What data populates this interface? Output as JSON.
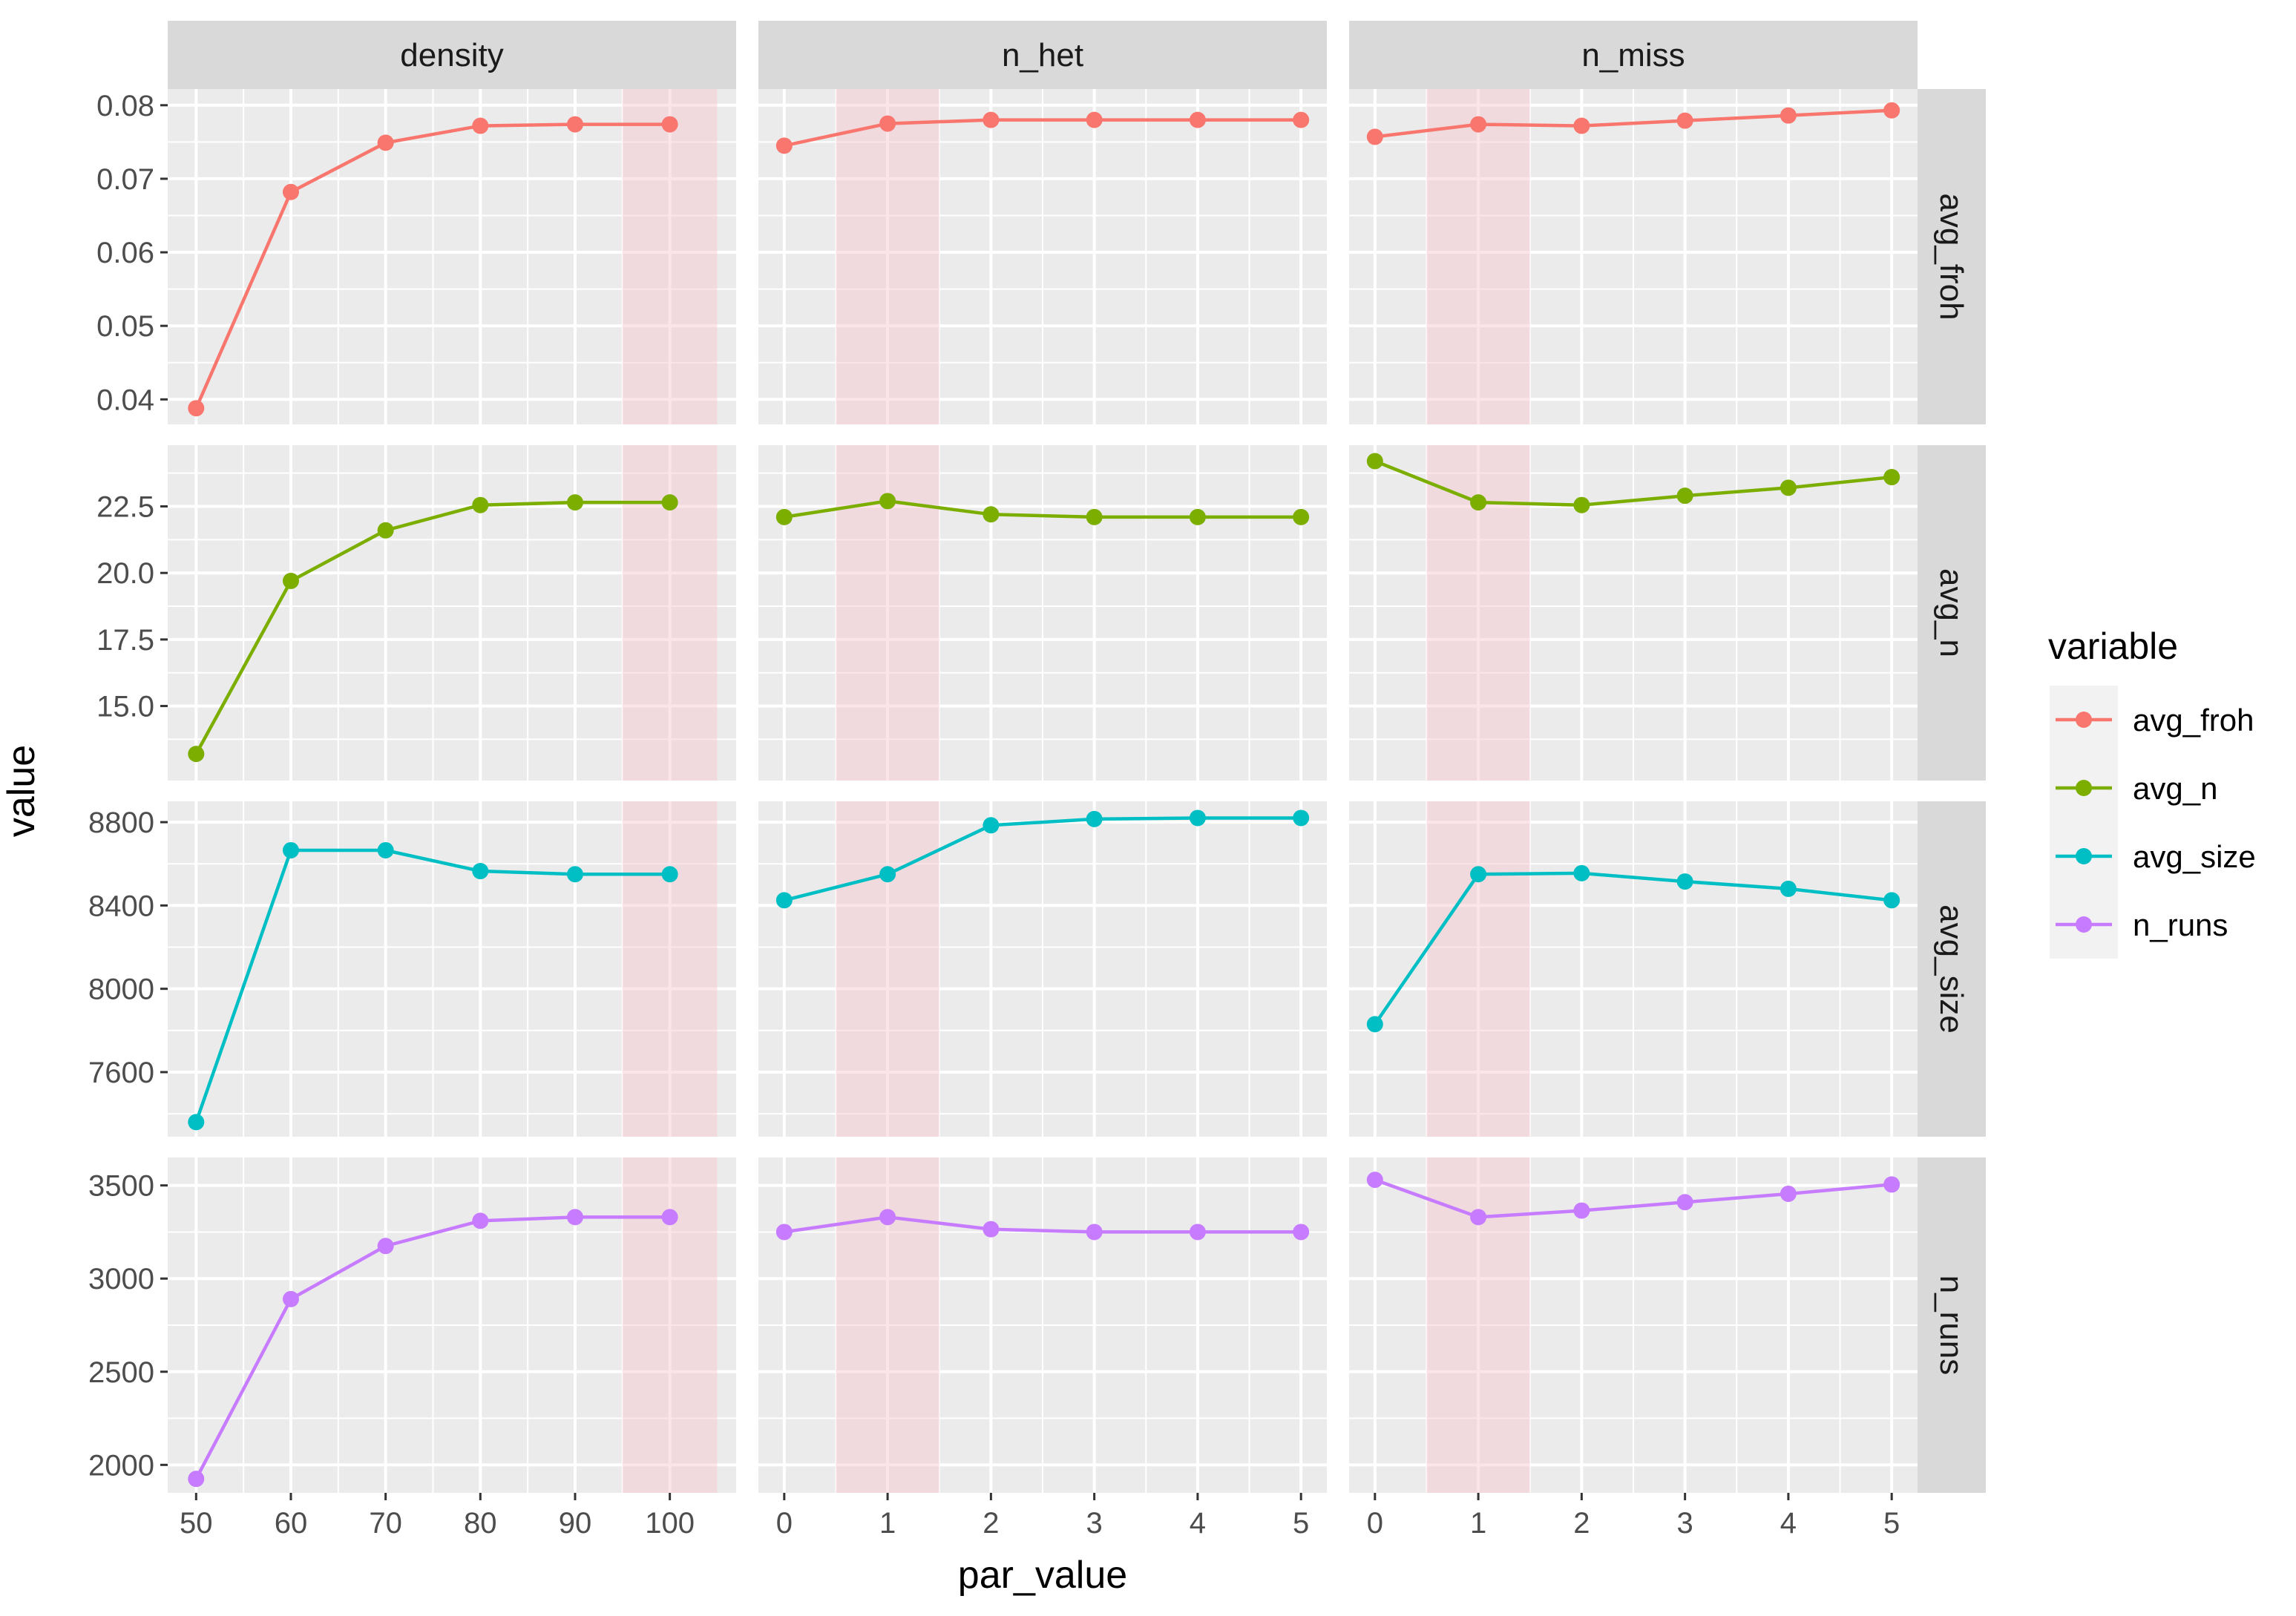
{
  "chart_data": {
    "type": "line",
    "xlabel": "par_value",
    "ylabel": "value",
    "legend": {
      "title": "variable",
      "placement": "right",
      "entries": [
        {
          "name": "avg_froh",
          "color": "#F8766D"
        },
        {
          "name": "avg_n",
          "color": "#7CAE00"
        },
        {
          "name": "avg_size",
          "color": "#00BFC4"
        },
        {
          "name": "n_runs",
          "color": "#C77CFF"
        }
      ]
    },
    "highlight_color": "#F7C6CE",
    "columns": [
      {
        "name": "density",
        "x": [
          50,
          60,
          70,
          80,
          90,
          100
        ],
        "xlim": [
          47,
          107
        ],
        "x_ticks": [
          50,
          60,
          70,
          80,
          90,
          100
        ],
        "highlight": [
          95,
          105
        ]
      },
      {
        "name": "n_het",
        "x": [
          0,
          1,
          2,
          3,
          4,
          5
        ],
        "xlim": [
          -0.25,
          5.25
        ],
        "x_ticks": [
          0,
          1,
          2,
          3,
          4,
          5
        ],
        "highlight": [
          0.5,
          1.5
        ]
      },
      {
        "name": "n_miss",
        "x": [
          0,
          1,
          2,
          3,
          4,
          5
        ],
        "xlim": [
          -0.25,
          5.25
        ],
        "x_ticks": [
          0,
          1,
          2,
          3,
          4,
          5
        ],
        "highlight": [
          0.5,
          1.5
        ]
      }
    ],
    "rows": [
      {
        "name": "avg_froh",
        "color": "#F8766D",
        "ylim": [
          0.0366,
          0.0822
        ],
        "y_ticks": [
          0.04,
          0.05,
          0.06,
          0.07,
          0.08
        ],
        "y_tick_labels": [
          "0.04",
          "0.05",
          "0.06",
          "0.07",
          "0.08"
        ],
        "series": {
          "density": [
            0.0388,
            0.0682,
            0.0749,
            0.0772,
            0.0774,
            0.0774
          ],
          "n_het": [
            0.0745,
            0.0775,
            0.078,
            0.078,
            0.078,
            0.078
          ],
          "n_miss": [
            0.0757,
            0.0774,
            0.0772,
            0.0779,
            0.0786,
            0.0793
          ]
        }
      },
      {
        "name": "avg_n",
        "color": "#7CAE00",
        "ylim": [
          12.2,
          24.8
        ],
        "y_ticks": [
          15,
          17.5,
          20,
          22.5
        ],
        "y_tick_labels": [
          "15.0",
          "17.5",
          "20.0",
          "22.5"
        ],
        "series": {
          "density": [
            13.2,
            19.7,
            21.6,
            22.55,
            22.65,
            22.65
          ],
          "n_het": [
            22.1,
            22.7,
            22.2,
            22.1,
            22.1,
            22.1
          ],
          "n_miss": [
            24.2,
            22.65,
            22.55,
            22.9,
            23.2,
            23.6
          ]
        }
      },
      {
        "name": "avg_size",
        "color": "#00BFC4",
        "ylim": [
          7290,
          8900
        ],
        "y_ticks": [
          7600,
          8000,
          8400,
          8800
        ],
        "y_tick_labels": [
          "7600",
          "8000",
          "8400",
          "8800"
        ],
        "series": {
          "density": [
            7360,
            8665,
            8665,
            8565,
            8550,
            8550
          ],
          "n_het": [
            8425,
            8550,
            8785,
            8815,
            8820,
            8820
          ],
          "n_miss": [
            7830,
            8550,
            8555,
            8515,
            8480,
            8425
          ]
        }
      },
      {
        "name": "n_runs",
        "color": "#C77CFF",
        "ylim": [
          1850,
          3650
        ],
        "y_ticks": [
          2000,
          2500,
          3000,
          3500
        ],
        "y_tick_labels": [
          "2000",
          "2500",
          "3000",
          "3500"
        ],
        "series": {
          "density": [
            1925,
            2890,
            3175,
            3310,
            3330,
            3330
          ],
          "n_het": [
            3250,
            3330,
            3265,
            3250,
            3250,
            3250
          ],
          "n_miss": [
            3530,
            3330,
            3365,
            3410,
            3455,
            3505
          ]
        }
      }
    ]
  }
}
